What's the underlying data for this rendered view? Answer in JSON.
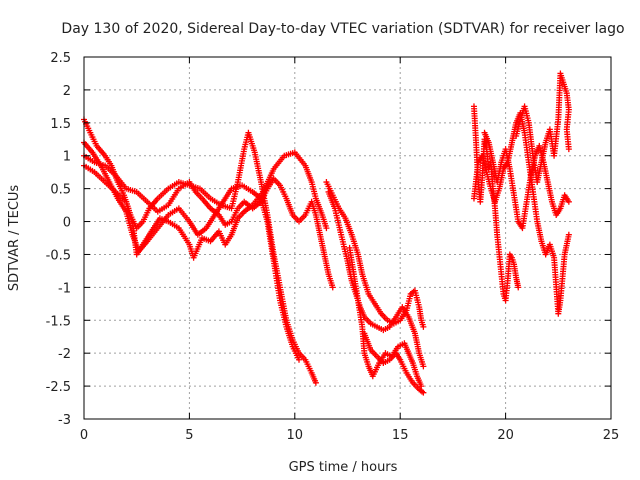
{
  "chart_data": {
    "type": "scatter",
    "title": "Day 130 of 2020, Sidereal Day-to-day VTEC variation (SDTVAR) for receiver lago",
    "xlabel": "GPS time / hours",
    "ylabel": "SDTVAR / TECUs",
    "xlim": [
      0,
      25
    ],
    "ylim": [
      -3,
      2.5
    ],
    "xticks": [
      "0",
      "5",
      "10",
      "15",
      "20",
      "25"
    ],
    "yticks": [
      "-3",
      "-2.5",
      "-2",
      "-1.5",
      "-1",
      "-0.5",
      "0",
      "0.5",
      "1",
      "1.5",
      "2",
      "2.5"
    ],
    "grid": true,
    "marker": "+",
    "color": "#ff0000",
    "series": [
      {
        "points": [
          [
            0.0,
            1.55
          ],
          [
            0.3,
            1.35
          ],
          [
            0.6,
            1.15
          ],
          [
            1.0,
            1.0
          ],
          [
            1.3,
            0.85
          ],
          [
            1.6,
            0.6
          ],
          [
            1.9,
            0.4
          ],
          [
            2.2,
            0.1
          ],
          [
            2.5,
            -0.1
          ],
          [
            2.8,
            0.0
          ],
          [
            3.1,
            0.2
          ],
          [
            3.5,
            0.35
          ],
          [
            4.0,
            0.5
          ],
          [
            4.5,
            0.6
          ],
          [
            5.0,
            0.55
          ],
          [
            5.5,
            0.5
          ],
          [
            6.0,
            0.35
          ],
          [
            6.5,
            0.25
          ],
          [
            7.0,
            0.2
          ],
          [
            7.3,
            0.6
          ],
          [
            7.6,
            1.1
          ],
          [
            7.8,
            1.35
          ],
          [
            8.1,
            1.05
          ],
          [
            8.4,
            0.6
          ],
          [
            8.7,
            0.1
          ],
          [
            9.0,
            -0.5
          ],
          [
            9.3,
            -1.0
          ],
          [
            9.6,
            -1.5
          ],
          [
            9.9,
            -1.8
          ],
          [
            10.2,
            -2.0
          ],
          [
            10.5,
            -2.1
          ],
          [
            10.8,
            -2.3
          ],
          [
            11.0,
            -2.45
          ]
        ]
      },
      {
        "points": [
          [
            0.0,
            1.2
          ],
          [
            0.4,
            1.05
          ],
          [
            0.8,
            0.85
          ],
          [
            1.2,
            0.6
          ],
          [
            1.6,
            0.35
          ],
          [
            2.0,
            0.15
          ],
          [
            2.3,
            -0.2
          ],
          [
            2.6,
            -0.45
          ],
          [
            3.0,
            -0.3
          ],
          [
            3.5,
            -0.1
          ],
          [
            4.0,
            0.1
          ],
          [
            4.5,
            0.2
          ],
          [
            5.0,
            0.0
          ],
          [
            5.4,
            -0.2
          ],
          [
            5.8,
            -0.1
          ],
          [
            6.2,
            0.1
          ],
          [
            6.6,
            0.3
          ],
          [
            7.0,
            0.5
          ],
          [
            7.5,
            0.55
          ],
          [
            8.0,
            0.45
          ],
          [
            8.4,
            0.35
          ],
          [
            8.7,
            0.0
          ],
          [
            9.0,
            -0.6
          ],
          [
            9.3,
            -1.2
          ],
          [
            9.6,
            -1.6
          ],
          [
            9.9,
            -1.9
          ],
          [
            10.2,
            -2.1
          ]
        ]
      },
      {
        "points": [
          [
            0.0,
            0.85
          ],
          [
            0.5,
            0.75
          ],
          [
            1.0,
            0.6
          ],
          [
            1.5,
            0.45
          ],
          [
            2.0,
            0.3
          ],
          [
            2.3,
            0.0
          ],
          [
            2.5,
            -0.5
          ],
          [
            2.8,
            -0.35
          ],
          [
            3.2,
            -0.15
          ],
          [
            3.6,
            0.05
          ],
          [
            4.0,
            0.0
          ],
          [
            4.5,
            -0.1
          ],
          [
            5.0,
            -0.35
          ],
          [
            5.2,
            -0.55
          ],
          [
            5.6,
            -0.25
          ],
          [
            6.0,
            -0.3
          ],
          [
            6.4,
            -0.15
          ],
          [
            6.7,
            -0.35
          ],
          [
            7.0,
            -0.2
          ],
          [
            7.3,
            0.05
          ],
          [
            7.6,
            0.15
          ],
          [
            8.0,
            0.25
          ],
          [
            8.5,
            0.45
          ],
          [
            9.0,
            0.8
          ],
          [
            9.5,
            1.0
          ],
          [
            10.0,
            1.05
          ],
          [
            10.5,
            0.85
          ],
          [
            10.8,
            0.6
          ],
          [
            11.0,
            0.35
          ],
          [
            11.3,
            0.1
          ],
          [
            11.5,
            -0.1
          ]
        ]
      },
      {
        "points": [
          [
            0.0,
            1.0
          ],
          [
            0.5,
            0.9
          ],
          [
            1.0,
            0.85
          ],
          [
            1.5,
            0.7
          ],
          [
            2.0,
            0.5
          ],
          [
            2.5,
            0.45
          ],
          [
            3.0,
            0.3
          ],
          [
            3.5,
            0.15
          ],
          [
            4.0,
            0.25
          ],
          [
            4.5,
            0.5
          ],
          [
            5.0,
            0.6
          ],
          [
            5.3,
            0.45
          ],
          [
            5.6,
            0.35
          ],
          [
            6.0,
            0.2
          ],
          [
            6.4,
            0.1
          ],
          [
            6.7,
            -0.05
          ],
          [
            7.0,
            0.0
          ],
          [
            7.3,
            0.2
          ],
          [
            7.6,
            0.3
          ],
          [
            8.0,
            0.2
          ],
          [
            8.4,
            0.3
          ],
          [
            8.7,
            0.5
          ],
          [
            9.0,
            0.65
          ],
          [
            9.3,
            0.55
          ],
          [
            9.6,
            0.35
          ],
          [
            9.9,
            0.1
          ],
          [
            10.2,
            0.0
          ],
          [
            10.5,
            0.1
          ],
          [
            10.8,
            0.3
          ],
          [
            11.0,
            0.1
          ],
          [
            11.2,
            -0.2
          ],
          [
            11.4,
            -0.5
          ],
          [
            11.6,
            -0.8
          ],
          [
            11.8,
            -1.0
          ]
        ]
      },
      {
        "points": [
          [
            11.5,
            0.6
          ],
          [
            11.8,
            0.4
          ],
          [
            12.1,
            0.2
          ],
          [
            12.4,
            0.05
          ],
          [
            12.7,
            -0.2
          ],
          [
            13.0,
            -0.5
          ],
          [
            13.2,
            -0.8
          ],
          [
            13.5,
            -1.1
          ],
          [
            13.8,
            -1.25
          ],
          [
            14.1,
            -1.4
          ],
          [
            14.4,
            -1.5
          ],
          [
            14.7,
            -1.55
          ],
          [
            15.0,
            -1.5
          ],
          [
            15.3,
            -1.35
          ],
          [
            15.5,
            -1.1
          ],
          [
            15.7,
            -1.05
          ],
          [
            15.9,
            -1.3
          ],
          [
            16.0,
            -1.5
          ],
          [
            16.1,
            -1.6
          ]
        ]
      },
      {
        "points": [
          [
            11.6,
            0.45
          ],
          [
            11.9,
            0.2
          ],
          [
            12.2,
            -0.2
          ],
          [
            12.5,
            -0.6
          ],
          [
            12.7,
            -0.9
          ],
          [
            12.9,
            -1.1
          ],
          [
            13.1,
            -1.3
          ],
          [
            13.3,
            -1.45
          ],
          [
            13.6,
            -1.55
          ],
          [
            13.9,
            -1.6
          ],
          [
            14.2,
            -1.65
          ],
          [
            14.5,
            -1.6
          ],
          [
            14.8,
            -1.45
          ],
          [
            15.1,
            -1.3
          ],
          [
            15.4,
            -1.45
          ],
          [
            15.7,
            -1.7
          ],
          [
            15.9,
            -2.0
          ],
          [
            16.1,
            -2.2
          ]
        ]
      },
      {
        "points": [
          [
            12.6,
            -0.4
          ],
          [
            12.8,
            -0.8
          ],
          [
            13.0,
            -1.2
          ],
          [
            13.2,
            -1.6
          ],
          [
            13.3,
            -2.0
          ],
          [
            13.5,
            -2.2
          ],
          [
            13.7,
            -2.35
          ],
          [
            14.0,
            -2.15
          ],
          [
            14.3,
            -2.0
          ],
          [
            14.6,
            -2.05
          ],
          [
            14.9,
            -1.9
          ],
          [
            15.2,
            -1.85
          ],
          [
            15.4,
            -2.0
          ],
          [
            15.6,
            -2.15
          ],
          [
            15.8,
            -2.35
          ],
          [
            16.0,
            -2.5
          ]
        ]
      },
      {
        "points": [
          [
            13.3,
            -1.7
          ],
          [
            13.6,
            -1.95
          ],
          [
            13.9,
            -2.05
          ],
          [
            14.2,
            -2.15
          ],
          [
            14.5,
            -2.1
          ],
          [
            14.8,
            -2.0
          ],
          [
            15.0,
            -2.1
          ],
          [
            15.3,
            -2.3
          ],
          [
            15.6,
            -2.45
          ],
          [
            15.9,
            -2.55
          ],
          [
            16.1,
            -2.6
          ]
        ]
      },
      {
        "points": [
          [
            18.5,
            1.75
          ],
          [
            18.6,
            1.2
          ],
          [
            18.7,
            0.6
          ],
          [
            18.8,
            0.3
          ],
          [
            18.9,
            0.7
          ],
          [
            19.0,
            1.25
          ],
          [
            19.1,
            1.1
          ],
          [
            19.2,
            0.8
          ],
          [
            19.3,
            0.9
          ],
          [
            19.4,
            0.5
          ],
          [
            19.5,
            0.2
          ],
          [
            19.6,
            -0.2
          ],
          [
            19.7,
            -0.5
          ],
          [
            19.8,
            -0.8
          ],
          [
            19.9,
            -1.1
          ],
          [
            20.0,
            -1.2
          ],
          [
            20.1,
            -0.9
          ],
          [
            20.2,
            -0.5
          ],
          [
            20.3,
            -0.55
          ],
          [
            20.4,
            -0.65
          ],
          [
            20.5,
            -0.85
          ],
          [
            20.6,
            -1.0
          ]
        ]
      },
      {
        "points": [
          [
            18.5,
            0.35
          ],
          [
            18.7,
            0.9
          ],
          [
            18.9,
            1.0
          ],
          [
            19.1,
            0.75
          ],
          [
            19.3,
            0.5
          ],
          [
            19.5,
            0.3
          ],
          [
            19.7,
            0.5
          ],
          [
            19.9,
            0.8
          ],
          [
            20.1,
            0.9
          ],
          [
            20.3,
            1.2
          ],
          [
            20.5,
            1.5
          ],
          [
            20.7,
            1.65
          ],
          [
            20.9,
            1.35
          ],
          [
            21.1,
            0.9
          ],
          [
            21.3,
            0.45
          ],
          [
            21.5,
            0.0
          ],
          [
            21.7,
            -0.3
          ],
          [
            21.9,
            -0.5
          ],
          [
            22.1,
            -0.35
          ],
          [
            22.3,
            -0.55
          ],
          [
            22.5,
            -1.4
          ],
          [
            22.6,
            -1.2
          ],
          [
            22.8,
            -0.5
          ],
          [
            23.0,
            -0.2
          ]
        ]
      },
      {
        "points": [
          [
            19.0,
            1.35
          ],
          [
            19.2,
            1.2
          ],
          [
            19.4,
            0.9
          ],
          [
            19.6,
            0.6
          ],
          [
            19.8,
            0.9
          ],
          [
            20.0,
            1.1
          ],
          [
            20.2,
            0.8
          ],
          [
            20.4,
            0.4
          ],
          [
            20.6,
            0.0
          ],
          [
            20.8,
            -0.1
          ],
          [
            21.0,
            0.3
          ],
          [
            21.2,
            0.7
          ],
          [
            21.4,
            1.0
          ],
          [
            21.6,
            1.15
          ],
          [
            21.8,
            0.9
          ],
          [
            22.0,
            0.6
          ],
          [
            22.2,
            0.3
          ],
          [
            22.4,
            0.1
          ],
          [
            22.6,
            0.2
          ],
          [
            22.8,
            0.4
          ],
          [
            23.0,
            0.3
          ]
        ]
      },
      {
        "points": [
          [
            20.5,
            1.3
          ],
          [
            20.7,
            1.55
          ],
          [
            20.9,
            1.75
          ],
          [
            21.1,
            1.5
          ],
          [
            21.3,
            1.0
          ],
          [
            21.5,
            0.6
          ],
          [
            21.7,
            0.9
          ],
          [
            21.9,
            1.2
          ],
          [
            22.1,
            1.4
          ],
          [
            22.3,
            1.0
          ],
          [
            22.5,
            1.55
          ],
          [
            22.6,
            2.25
          ],
          [
            22.7,
            2.15
          ],
          [
            22.8,
            2.05
          ],
          [
            22.9,
            1.95
          ],
          [
            23.0,
            1.7
          ],
          [
            22.9,
            1.4
          ],
          [
            23.0,
            1.1
          ]
        ]
      }
    ]
  }
}
